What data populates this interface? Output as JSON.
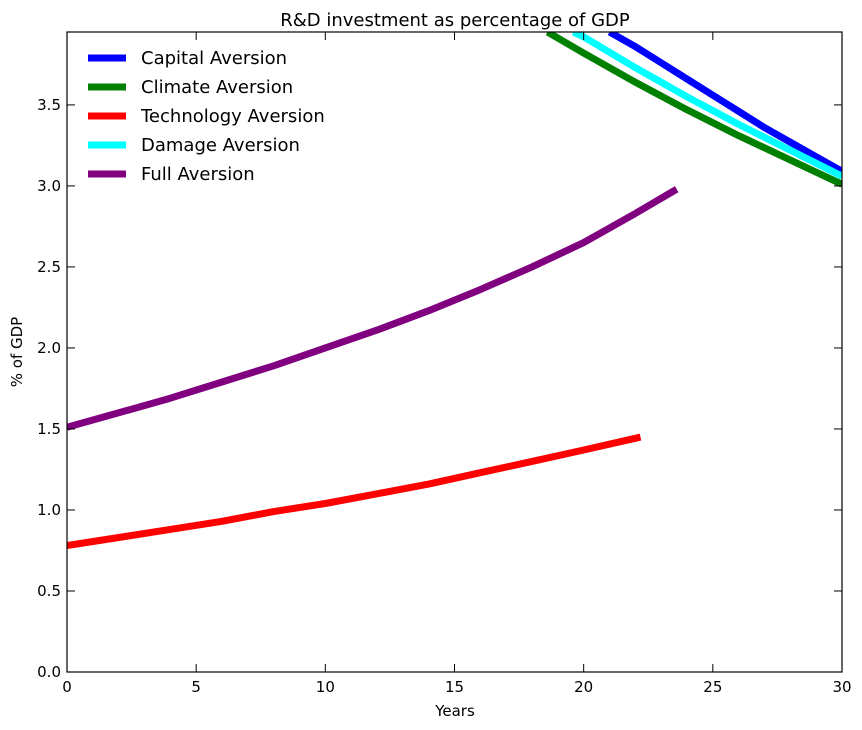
{
  "chart_data": {
    "type": "line",
    "title": "R&D investment as percentage of  GDP",
    "xlabel": "Years",
    "ylabel": "% of GDP",
    "xlim": [
      0,
      30
    ],
    "ylim": [
      0,
      3.95
    ],
    "x_ticks": [
      "0",
      "5",
      "10",
      "15",
      "20",
      "25",
      "30"
    ],
    "y_ticks": [
      "0.0",
      "0.5",
      "1.0",
      "1.5",
      "2.0",
      "2.5",
      "3.0",
      "3.5"
    ],
    "grid": false,
    "legend_position": "top-left",
    "series": [
      {
        "name": "Capital Aversion",
        "color": "#0000ff",
        "x": [
          21,
          22,
          23,
          24,
          25,
          26,
          27,
          28,
          29,
          30
        ],
        "y": [
          3.95,
          3.86,
          3.76,
          3.66,
          3.56,
          3.46,
          3.36,
          3.27,
          3.18,
          3.09
        ]
      },
      {
        "name": "Climate Aversion",
        "color": "#008000",
        "x": [
          18.6,
          20,
          22,
          24,
          26,
          28,
          30
        ],
        "y": [
          3.95,
          3.82,
          3.64,
          3.47,
          3.31,
          3.16,
          3.01
        ]
      },
      {
        "name": "Technology Aversion",
        "color": "#ff0000",
        "x": [
          0,
          2,
          4,
          6,
          8,
          10,
          12,
          14,
          16,
          18,
          20,
          22.2
        ],
        "y": [
          0.78,
          0.83,
          0.88,
          0.93,
          0.99,
          1.04,
          1.1,
          1.16,
          1.23,
          1.3,
          1.37,
          1.45
        ]
      },
      {
        "name": "Damage Aversion",
        "color": "#00ffff",
        "x": [
          19.6,
          20,
          22,
          24,
          26,
          28,
          30
        ],
        "y": [
          3.95,
          3.92,
          3.73,
          3.55,
          3.38,
          3.22,
          3.06
        ]
      },
      {
        "name": "Full Aversion",
        "color": "#800080",
        "x": [
          0,
          2,
          4,
          6,
          8,
          10,
          12,
          14,
          16,
          18,
          20,
          22,
          23.6
        ],
        "y": [
          1.51,
          1.6,
          1.69,
          1.79,
          1.89,
          2.0,
          2.11,
          2.23,
          2.36,
          2.5,
          2.65,
          2.83,
          2.98
        ]
      }
    ]
  }
}
